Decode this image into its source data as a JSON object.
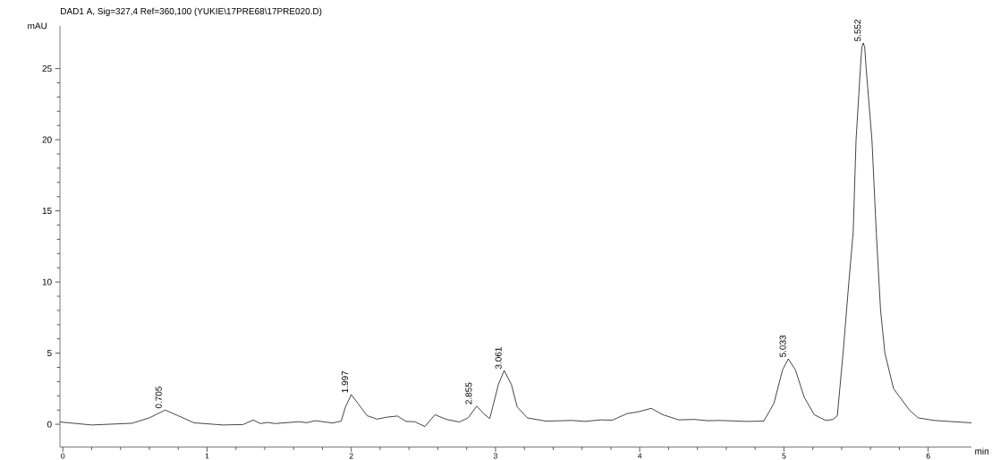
{
  "chart_data": {
    "type": "line",
    "title": "DAD1 A, Sig=327,4 Ref=360,100 (YUKIE\\17PRE68\\17PRE020.D)",
    "xlabel": "min",
    "ylabel": "mAU",
    "color": "#000000",
    "x": [
      -0.02,
      0.2,
      0.48,
      0.6,
      0.71,
      0.8,
      0.91,
      1.11,
      1.25,
      1.32,
      1.37,
      1.42,
      1.47,
      1.64,
      1.69,
      1.75,
      1.87,
      1.93,
      1.96,
      2.0,
      2.05,
      2.11,
      2.18,
      2.24,
      2.32,
      2.38,
      2.44,
      2.51,
      2.58,
      2.66,
      2.75,
      2.81,
      2.87,
      2.92,
      2.96,
      3.02,
      3.06,
      3.11,
      3.15,
      3.22,
      3.35,
      3.53,
      3.62,
      3.73,
      3.81,
      3.91,
      4.0,
      4.08,
      4.16,
      4.27,
      4.38,
      4.47,
      4.56,
      4.74,
      4.86,
      4.93,
      4.99,
      5.03,
      5.08,
      5.14,
      5.21,
      5.29,
      5.34,
      5.37,
      5.41,
      5.45,
      5.48,
      5.5,
      5.53,
      5.54,
      5.55,
      5.56,
      5.57,
      5.61,
      5.64,
      5.67,
      5.7,
      5.76,
      5.87,
      5.93,
      6.04,
      6.3
    ],
    "values": [
      0.16,
      -0.05,
      0.07,
      0.45,
      1.0,
      0.6,
      0.1,
      -0.05,
      -0.02,
      0.3,
      0.05,
      0.13,
      0.05,
      0.18,
      0.11,
      0.25,
      0.09,
      0.22,
      1.23,
      2.09,
      1.41,
      0.6,
      0.36,
      0.49,
      0.58,
      0.2,
      0.18,
      -0.16,
      0.67,
      0.34,
      0.16,
      0.45,
      1.28,
      0.72,
      0.4,
      2.8,
      3.77,
      2.8,
      1.23,
      0.45,
      0.22,
      0.27,
      0.2,
      0.31,
      0.29,
      0.74,
      0.9,
      1.12,
      0.67,
      0.31,
      0.34,
      0.25,
      0.27,
      0.2,
      0.22,
      1.46,
      3.81,
      4.6,
      3.81,
      1.91,
      0.67,
      0.27,
      0.34,
      0.6,
      5,
      10,
      13.5,
      20,
      25,
      26.5,
      26.8,
      26.5,
      25,
      20,
      13.5,
      8,
      5,
      2.5,
      1,
      0.45,
      0.27,
      0.1
    ],
    "xlim": [
      -0.02,
      6.3
    ],
    "ylim": [
      -1.6,
      28
    ],
    "xticks": [
      0,
      1,
      2,
      3,
      4,
      5,
      6
    ],
    "yticks": [
      0,
      5,
      10,
      15,
      20,
      25
    ],
    "annotations": [
      {
        "text": "0.705",
        "x": 0.705,
        "y": 1.0
      },
      {
        "text": "1.997",
        "x": 1.997,
        "y": 2.09
      },
      {
        "text": "2.855",
        "x": 2.855,
        "y": 1.28
      },
      {
        "text": "3.061",
        "x": 3.061,
        "y": 3.77
      },
      {
        "text": "5.033",
        "x": 5.033,
        "y": 4.6
      },
      {
        "text": "5.552",
        "x": 5.552,
        "y": 26.8
      }
    ]
  }
}
